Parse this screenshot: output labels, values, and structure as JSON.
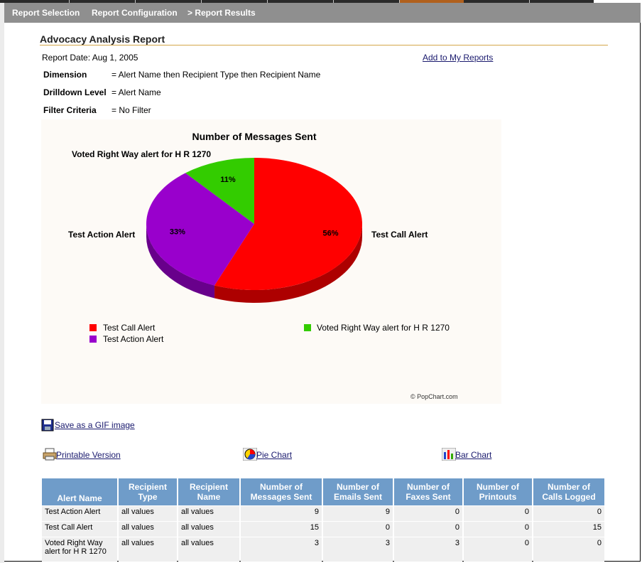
{
  "nav": {
    "items": [
      "Report Selection",
      "Report Configuration",
      "> Report Results"
    ]
  },
  "report": {
    "title": "Advocacy Analysis Report",
    "date": "Report Date: Aug 1, 2005",
    "add_link": "Add to My Reports",
    "params": [
      {
        "label": "Dimension",
        "value": "= Alert Name then Recipient Type then Recipient Name"
      },
      {
        "label": "Drilldown Level",
        "value": "= Alert Name"
      },
      {
        "label": "Filter Criteria",
        "value": "= No Filter"
      }
    ]
  },
  "chart_data": {
    "type": "pie",
    "title": "Number of Messages Sent",
    "categories": [
      "Test Call Alert",
      "Test Action Alert",
      "Voted Right Way alert for H R 1270"
    ],
    "values": [
      56,
      33,
      11
    ],
    "value_labels": [
      "56%",
      "33%",
      "11%"
    ],
    "colors": [
      "#ff0000",
      "#9900cc",
      "#33cc00"
    ],
    "legend": [
      "Test Call Alert",
      "Voted Right Way alert for H R 1270",
      "Test Action Alert"
    ],
    "credit": "© PopChart.com"
  },
  "links": {
    "save_gif": "Save as a GIF image",
    "printable": "Printable Version",
    "pie_chart": "Pie Chart",
    "bar_chart": "Bar Chart"
  },
  "icons": {
    "save": "floppy-disk-icon",
    "print": "printer-icon",
    "pie": "pie-chart-icon",
    "bar": "bar-chart-icon"
  },
  "table": {
    "headers": [
      [
        "Alert Name",
        ""
      ],
      [
        "Recipient",
        "Type"
      ],
      [
        "Recipient",
        "Name"
      ],
      [
        "Number of",
        "Messages Sent"
      ],
      [
        "Number of",
        "Emails Sent"
      ],
      [
        "Number of",
        "Faxes Sent"
      ],
      [
        "Number of",
        "Printouts"
      ],
      [
        "Number of",
        "Calls Logged"
      ]
    ],
    "rows": [
      [
        "Test Action Alert",
        "all values",
        "all values",
        "9",
        "9",
        "0",
        "0",
        "0"
      ],
      [
        "Test Call Alert",
        "all values",
        "all values",
        "15",
        "0",
        "0",
        "0",
        "15"
      ],
      [
        "Voted Right Way alert for H R 1270",
        "all values",
        "all values",
        "3",
        "3",
        "3",
        "0",
        "0"
      ]
    ]
  }
}
